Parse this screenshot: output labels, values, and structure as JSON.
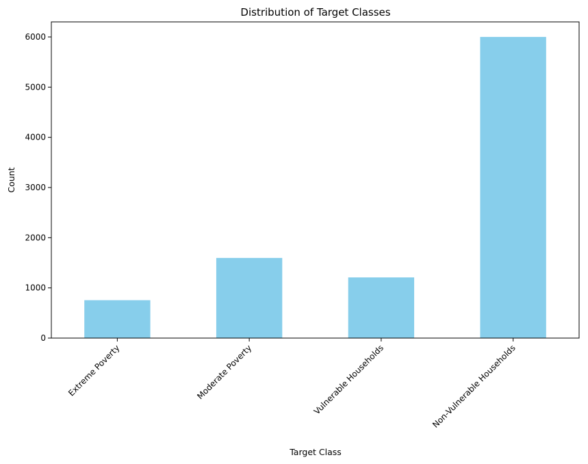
{
  "chart_data": {
    "type": "bar",
    "title": "Distribution of Target Classes",
    "xlabel": "Target Class",
    "ylabel": "Count",
    "categories": [
      "Extreme Poverty",
      "Moderate Poverty",
      "Vulnerable Households",
      "Non-Vulnerable Households"
    ],
    "values": [
      755,
      1597,
      1209,
      6001
    ],
    "ylim": [
      0,
      6300
    ],
    "yticks": [
      0,
      1000,
      2000,
      3000,
      4000,
      5000,
      6000
    ],
    "ytick_labels": [
      "0",
      "1000",
      "2000",
      "3000",
      "4000",
      "5000",
      "6000"
    ],
    "bar_color": "#87ceeb",
    "grid": false,
    "legend": "none",
    "xtick_rotation": "45° right-aligned"
  }
}
